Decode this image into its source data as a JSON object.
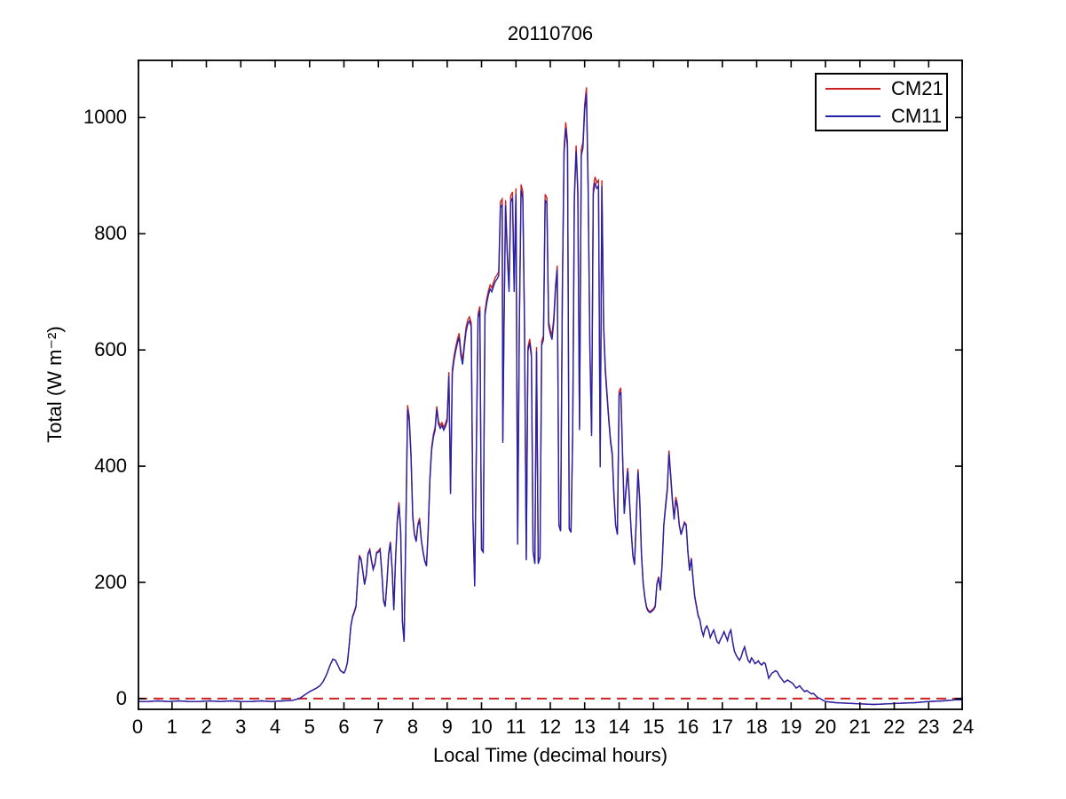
{
  "figure": {
    "background": "#ffffff",
    "frame_color": "#000000",
    "text_color": "#000000"
  },
  "chart_data": {
    "type": "line",
    "title": "20110706",
    "xlabel": "Local Time (decimal hours)",
    "ylabel": "Total (W m⁻²)",
    "xlim": [
      0,
      24
    ],
    "ylim": [
      -20,
      1100
    ],
    "xticks": [
      0,
      1,
      2,
      3,
      4,
      5,
      6,
      7,
      8,
      9,
      10,
      11,
      12,
      13,
      14,
      15,
      16,
      17,
      18,
      19,
      20,
      21,
      22,
      23,
      24
    ],
    "xtick_labels": [
      "0",
      "1",
      "2",
      "3",
      "4",
      "5",
      "6",
      "7",
      "8",
      "9",
      "10",
      "11",
      "12",
      "13",
      "14",
      "15",
      "16",
      "17",
      "18",
      "19",
      "20",
      "21",
      "22",
      "23",
      "24"
    ],
    "yticks": [
      0,
      200,
      400,
      600,
      800,
      1000
    ],
    "ytick_labels": [
      "0",
      "200",
      "400",
      "600",
      "800",
      "1000"
    ],
    "grid": false,
    "legend": {
      "position": "top-right",
      "entries": [
        {
          "label": "CM21",
          "color": "#cc2222",
          "style": "solid"
        },
        {
          "label": "CM11",
          "color": "#2222aa",
          "style": "solid"
        }
      ]
    },
    "zero_reference_line": {
      "y": 0,
      "color": "#cc2222",
      "style": "dashed"
    },
    "points_format": [
      "local_time_hours",
      "CM21_W_m2",
      "CM11_W_m2"
    ],
    "points": [
      [
        0,
        -5,
        -5
      ],
      [
        0.3,
        -5,
        -5
      ],
      [
        0.6,
        -4,
        -4
      ],
      [
        0.9,
        -5,
        -5
      ],
      [
        1.2,
        -4,
        -4
      ],
      [
        1.5,
        -5,
        -5
      ],
      [
        1.8,
        -5,
        -5
      ],
      [
        2.1,
        -4,
        -4
      ],
      [
        2.4,
        -5,
        -5
      ],
      [
        2.7,
        -4,
        -4
      ],
      [
        3,
        -5,
        -5
      ],
      [
        3.3,
        -5,
        -5
      ],
      [
        3.6,
        -4,
        -4
      ],
      [
        3.9,
        -5,
        -5
      ],
      [
        4.2,
        -4,
        -4
      ],
      [
        4.5,
        -3,
        -3
      ],
      [
        4.7,
        0,
        0
      ],
      [
        4.8,
        4,
        4
      ],
      [
        4.9,
        8,
        8
      ],
      [
        5,
        12,
        12
      ],
      [
        5.1,
        15,
        15
      ],
      [
        5.2,
        18,
        18
      ],
      [
        5.3,
        22,
        22
      ],
      [
        5.4,
        30,
        30
      ],
      [
        5.5,
        42,
        42
      ],
      [
        5.6,
        58,
        58
      ],
      [
        5.68,
        68,
        68
      ],
      [
        5.75,
        66,
        66
      ],
      [
        5.82,
        58,
        58
      ],
      [
        5.9,
        48,
        48
      ],
      [
        6,
        44,
        44
      ],
      [
        6.05,
        50,
        50
      ],
      [
        6.1,
        62,
        62
      ],
      [
        6.15,
        90,
        90
      ],
      [
        6.2,
        125,
        125
      ],
      [
        6.25,
        142,
        140
      ],
      [
        6.3,
        150,
        148
      ],
      [
        6.35,
        160,
        158
      ],
      [
        6.4,
        207,
        205
      ],
      [
        6.45,
        247,
        245
      ],
      [
        6.5,
        240,
        238
      ],
      [
        6.55,
        220,
        218
      ],
      [
        6.6,
        198,
        196
      ],
      [
        6.65,
        214,
        212
      ],
      [
        6.7,
        250,
        248
      ],
      [
        6.75,
        257,
        255
      ],
      [
        6.8,
        239,
        237
      ],
      [
        6.85,
        224,
        222
      ],
      [
        6.9,
        233,
        231
      ],
      [
        6.95,
        252,
        250
      ],
      [
        7,
        254,
        252
      ],
      [
        7.05,
        258,
        256
      ],
      [
        7.1,
        220,
        218
      ],
      [
        7.15,
        170,
        168
      ],
      [
        7.2,
        160,
        158
      ],
      [
        7.25,
        200,
        198
      ],
      [
        7.3,
        250,
        248
      ],
      [
        7.35,
        270,
        268
      ],
      [
        7.4,
        224,
        222
      ],
      [
        7.45,
        154,
        152
      ],
      [
        7.5,
        240,
        238
      ],
      [
        7.55,
        308,
        303
      ],
      [
        7.6,
        338,
        333
      ],
      [
        7.65,
        290,
        288
      ],
      [
        7.7,
        132,
        132
      ],
      [
        7.75,
        98,
        98
      ],
      [
        7.8,
        300,
        295
      ],
      [
        7.85,
        505,
        498
      ],
      [
        7.9,
        485,
        478
      ],
      [
        7.95,
        420,
        415
      ],
      [
        8,
        317,
        312
      ],
      [
        8.05,
        284,
        282
      ],
      [
        8.1,
        272,
        270
      ],
      [
        8.15,
        300,
        298
      ],
      [
        8.2,
        311,
        306
      ],
      [
        8.25,
        274,
        272
      ],
      [
        8.3,
        254,
        252
      ],
      [
        8.35,
        238,
        236
      ],
      [
        8.4,
        230,
        228
      ],
      [
        8.45,
        290,
        288
      ],
      [
        8.5,
        383,
        378
      ],
      [
        8.55,
        433,
        428
      ],
      [
        8.6,
        455,
        450
      ],
      [
        8.65,
        467,
        462
      ],
      [
        8.7,
        503,
        498
      ],
      [
        8.75,
        477,
        472
      ],
      [
        8.8,
        470,
        465
      ],
      [
        8.85,
        475,
        470
      ],
      [
        8.9,
        467,
        462
      ],
      [
        8.95,
        473,
        468
      ],
      [
        9,
        483,
        478
      ],
      [
        9.05,
        562,
        555
      ],
      [
        9.1,
        357,
        352
      ],
      [
        9.15,
        567,
        560
      ],
      [
        9.2,
        589,
        582
      ],
      [
        9.25,
        605,
        598
      ],
      [
        9.3,
        619,
        612
      ],
      [
        9.35,
        629,
        622
      ],
      [
        9.4,
        597,
        590
      ],
      [
        9.45,
        582,
        575
      ],
      [
        9.5,
        612,
        605
      ],
      [
        9.55,
        639,
        632
      ],
      [
        9.6,
        652,
        645
      ],
      [
        9.65,
        657,
        650
      ],
      [
        9.7,
        647,
        640
      ],
      [
        9.75,
        315,
        310
      ],
      [
        9.8,
        195,
        193
      ],
      [
        9.85,
        435,
        430
      ],
      [
        9.9,
        662,
        655
      ],
      [
        9.95,
        675,
        668
      ],
      [
        10,
        258,
        256
      ],
      [
        10.05,
        254,
        252
      ],
      [
        10.1,
        667,
        660
      ],
      [
        10.15,
        687,
        680
      ],
      [
        10.2,
        702,
        695
      ],
      [
        10.25,
        712,
        705
      ],
      [
        10.3,
        707,
        700
      ],
      [
        10.35,
        717,
        710
      ],
      [
        10.4,
        725,
        718
      ],
      [
        10.45,
        729,
        722
      ],
      [
        10.5,
        735,
        728
      ],
      [
        10.55,
        855,
        845
      ],
      [
        10.6,
        860,
        850
      ],
      [
        10.62,
        445,
        440
      ],
      [
        10.65,
        627,
        620
      ],
      [
        10.7,
        858,
        848
      ],
      [
        10.75,
        767,
        760
      ],
      [
        10.8,
        707,
        700
      ],
      [
        10.85,
        865,
        855
      ],
      [
        10.9,
        872,
        862
      ],
      [
        10.95,
        707,
        700
      ],
      [
        11,
        878,
        868
      ],
      [
        11.05,
        267,
        265
      ],
      [
        11.1,
        647,
        640
      ],
      [
        11.15,
        885,
        875
      ],
      [
        11.2,
        872,
        862
      ],
      [
        11.25,
        652,
        645
      ],
      [
        11.3,
        240,
        238
      ],
      [
        11.35,
        605,
        598
      ],
      [
        11.4,
        619,
        612
      ],
      [
        11.45,
        595,
        588
      ],
      [
        11.5,
        254,
        252
      ],
      [
        11.55,
        234,
        232
      ],
      [
        11.6,
        605,
        598
      ],
      [
        11.65,
        234,
        232
      ],
      [
        11.7,
        244,
        242
      ],
      [
        11.75,
        615,
        608
      ],
      [
        11.8,
        625,
        618
      ],
      [
        11.85,
        868,
        858
      ],
      [
        11.9,
        862,
        852
      ],
      [
        11.95,
        649,
        642
      ],
      [
        12,
        635,
        628
      ],
      [
        12.05,
        625,
        618
      ],
      [
        12.1,
        655,
        648
      ],
      [
        12.15,
        709,
        702
      ],
      [
        12.2,
        745,
        738
      ],
      [
        12.25,
        300,
        298
      ],
      [
        12.3,
        290,
        288
      ],
      [
        12.35,
        707,
        700
      ],
      [
        12.4,
        948,
        938
      ],
      [
        12.45,
        992,
        982
      ],
      [
        12.5,
        958,
        948
      ],
      [
        12.55,
        294,
        292
      ],
      [
        12.6,
        288,
        286
      ],
      [
        12.65,
        457,
        452
      ],
      [
        12.7,
        868,
        858
      ],
      [
        12.75,
        952,
        942
      ],
      [
        12.8,
        878,
        868
      ],
      [
        12.85,
        467,
        462
      ],
      [
        12.9,
        945,
        935
      ],
      [
        12.95,
        958,
        948
      ],
      [
        13,
        1022,
        1012
      ],
      [
        13.05,
        1052,
        1042
      ],
      [
        13.1,
        888,
        878
      ],
      [
        13.15,
        605,
        598
      ],
      [
        13.2,
        457,
        452
      ],
      [
        13.25,
        878,
        868
      ],
      [
        13.3,
        898,
        888
      ],
      [
        13.35,
        888,
        878
      ],
      [
        13.4,
        892,
        882
      ],
      [
        13.45,
        403,
        398
      ],
      [
        13.5,
        892,
        882
      ],
      [
        13.55,
        645,
        638
      ],
      [
        13.6,
        569,
        562
      ],
      [
        13.65,
        527,
        520
      ],
      [
        13.7,
        483,
        478
      ],
      [
        13.75,
        447,
        442
      ],
      [
        13.8,
        423,
        418
      ],
      [
        13.85,
        353,
        348
      ],
      [
        13.9,
        300,
        298
      ],
      [
        13.95,
        284,
        282
      ],
      [
        14,
        529,
        522
      ],
      [
        14.05,
        535,
        528
      ],
      [
        14.1,
        423,
        418
      ],
      [
        14.15,
        320,
        318
      ],
      [
        14.2,
        363,
        358
      ],
      [
        14.25,
        397,
        392
      ],
      [
        14.3,
        347,
        342
      ],
      [
        14.35,
        290,
        288
      ],
      [
        14.4,
        248,
        246
      ],
      [
        14.45,
        232,
        230
      ],
      [
        14.5,
        313,
        308
      ],
      [
        14.55,
        395,
        390
      ],
      [
        14.6,
        343,
        338
      ],
      [
        14.65,
        250,
        248
      ],
      [
        14.7,
        200,
        198
      ],
      [
        14.75,
        174,
        172
      ],
      [
        14.8,
        158,
        156
      ],
      [
        14.85,
        152,
        150
      ],
      [
        14.9,
        150,
        148
      ],
      [
        14.95,
        152,
        150
      ],
      [
        15,
        155,
        153
      ],
      [
        15.05,
        160,
        158
      ],
      [
        15.1,
        198,
        196
      ],
      [
        15.15,
        210,
        208
      ],
      [
        15.2,
        188,
        186
      ],
      [
        15.25,
        230,
        228
      ],
      [
        15.3,
        300,
        298
      ],
      [
        15.35,
        333,
        328
      ],
      [
        15.4,
        363,
        358
      ],
      [
        15.45,
        427,
        422
      ],
      [
        15.5,
        387,
        382
      ],
      [
        15.55,
        343,
        338
      ],
      [
        15.6,
        313,
        308
      ],
      [
        15.65,
        347,
        342
      ],
      [
        15.7,
        333,
        328
      ],
      [
        15.75,
        300,
        298
      ],
      [
        15.8,
        284,
        282
      ],
      [
        15.85,
        294,
        292
      ],
      [
        15.9,
        304,
        302
      ],
      [
        15.95,
        300,
        298
      ],
      [
        16,
        254,
        252
      ],
      [
        16.05,
        222,
        220
      ],
      [
        16.1,
        242,
        240
      ],
      [
        16.15,
        207,
        205
      ],
      [
        16.2,
        177,
        175
      ],
      [
        16.25,
        160,
        158
      ],
      [
        16.3,
        144,
        142
      ],
      [
        16.35,
        135,
        135
      ],
      [
        16.4,
        118,
        118
      ],
      [
        16.45,
        108,
        108
      ],
      [
        16.5,
        120,
        120
      ],
      [
        16.55,
        125,
        125
      ],
      [
        16.6,
        118,
        118
      ],
      [
        16.65,
        105,
        105
      ],
      [
        16.7,
        112,
        112
      ],
      [
        16.75,
        118,
        118
      ],
      [
        16.8,
        108,
        108
      ],
      [
        16.85,
        98,
        98
      ],
      [
        16.9,
        95,
        95
      ],
      [
        16.95,
        102,
        102
      ],
      [
        17,
        108,
        108
      ],
      [
        17.05,
        115,
        115
      ],
      [
        17.1,
        108,
        108
      ],
      [
        17.15,
        100,
        100
      ],
      [
        17.2,
        112,
        112
      ],
      [
        17.25,
        118,
        118
      ],
      [
        17.3,
        98,
        98
      ],
      [
        17.35,
        82,
        82
      ],
      [
        17.4,
        75,
        75
      ],
      [
        17.45,
        70,
        70
      ],
      [
        17.5,
        66,
        66
      ],
      [
        17.55,
        72,
        72
      ],
      [
        17.6,
        82,
        82
      ],
      [
        17.65,
        89,
        89
      ],
      [
        17.7,
        76,
        76
      ],
      [
        17.75,
        66,
        66
      ],
      [
        17.8,
        62,
        62
      ],
      [
        17.85,
        70,
        70
      ],
      [
        17.9,
        66,
        66
      ],
      [
        17.95,
        60,
        60
      ],
      [
        18,
        62,
        62
      ],
      [
        18.05,
        65,
        65
      ],
      [
        18.1,
        60,
        60
      ],
      [
        18.15,
        58,
        58
      ],
      [
        18.2,
        62,
        62
      ],
      [
        18.25,
        60,
        60
      ],
      [
        18.3,
        48,
        48
      ],
      [
        18.35,
        35,
        35
      ],
      [
        18.4,
        40,
        40
      ],
      [
        18.45,
        44,
        44
      ],
      [
        18.5,
        46,
        46
      ],
      [
        18.55,
        48,
        48
      ],
      [
        18.6,
        46,
        46
      ],
      [
        18.65,
        40,
        40
      ],
      [
        18.7,
        36,
        36
      ],
      [
        18.75,
        32,
        32
      ],
      [
        18.8,
        28,
        28
      ],
      [
        18.85,
        30,
        30
      ],
      [
        18.9,
        32,
        32
      ],
      [
        18.95,
        30,
        30
      ],
      [
        19,
        28,
        28
      ],
      [
        19.05,
        26,
        26
      ],
      [
        19.1,
        22,
        22
      ],
      [
        19.15,
        18,
        18
      ],
      [
        19.2,
        20,
        20
      ],
      [
        19.25,
        22,
        22
      ],
      [
        19.3,
        18,
        18
      ],
      [
        19.35,
        15,
        15
      ],
      [
        19.4,
        12,
        12
      ],
      [
        19.45,
        14,
        14
      ],
      [
        19.5,
        12,
        12
      ],
      [
        19.55,
        10,
        10
      ],
      [
        19.6,
        8,
        8
      ],
      [
        19.65,
        9,
        9
      ],
      [
        19.7,
        6,
        6
      ],
      [
        19.75,
        3,
        3
      ],
      [
        19.8,
        1,
        1
      ],
      [
        19.85,
        0,
        0
      ],
      [
        19.9,
        -2,
        -2
      ],
      [
        20,
        -5,
        -5
      ],
      [
        20.3,
        -7,
        -7
      ],
      [
        20.6,
        -8,
        -8
      ],
      [
        21,
        -9,
        -9
      ],
      [
        21.4,
        -10,
        -10
      ],
      [
        21.8,
        -9,
        -9
      ],
      [
        22.2,
        -8,
        -8
      ],
      [
        22.6,
        -7,
        -7
      ],
      [
        23,
        -5,
        -5
      ],
      [
        23.4,
        -4,
        -4
      ],
      [
        23.8,
        -2,
        -2
      ],
      [
        24,
        -2,
        -2
      ]
    ]
  }
}
